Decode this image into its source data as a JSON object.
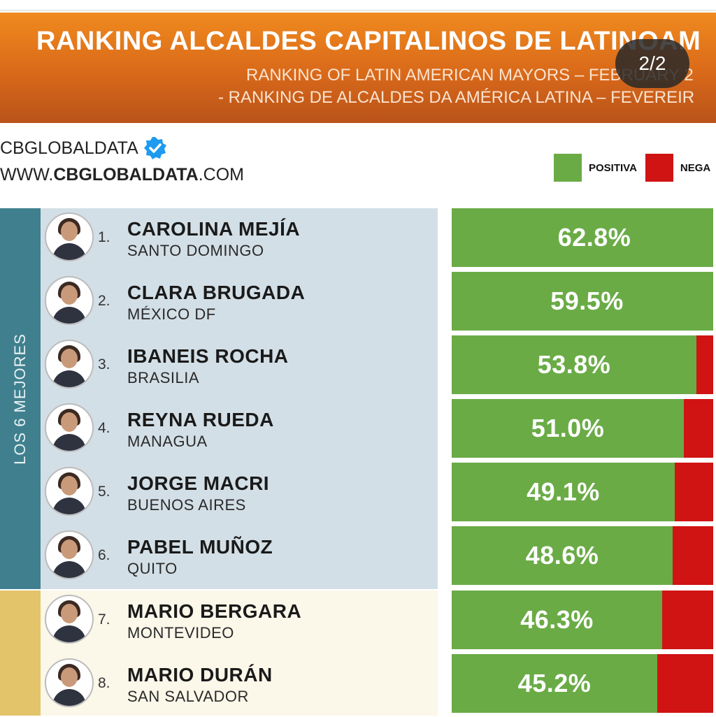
{
  "header": {
    "title": "RANKING ALCALDES CAPITALINOS DE LATINOAM",
    "subtitle_en": "RANKING OF LATIN AMERICAN MAYORS – FEBRUARY 2",
    "subtitle_pt": "- RANKING DE ALCALDES DA AMÉRICA LATINA – FEVEREIR",
    "page_indicator": "2/2"
  },
  "brand": {
    "handle": "CBGLOBALDATA",
    "verified_icon": "verified-badge-icon",
    "site_prefix": "WWW.",
    "site_bold": "CBGLOBALDATA",
    "site_suffix": ".COM"
  },
  "legend": {
    "positive": "POSITIVA",
    "negative": "NEGA"
  },
  "colors": {
    "positive": "#6aab46",
    "negative": "#d01313",
    "group_top": "#40808e",
    "group_bottom": "#e3c46b",
    "banner": "#e0761c"
  },
  "sidebar": {
    "group_label": "LOS 6 MEJORES"
  },
  "chart_data": {
    "type": "bar",
    "title": "RANKING ALCALDES CAPITALINOS DE LATINOAM",
    "legend": [
      "POSITIVA",
      "NEGA"
    ],
    "categories": [
      "CAROLINA MEJÍA",
      "CLARA BRUGADA",
      "IBANEIS ROCHA",
      "REYNA RUEDA",
      "JORGE MACRI",
      "PABEL MUÑOZ",
      "MARIO BERGARA",
      "MARIO DURÁN"
    ],
    "series": [
      {
        "name": "POSITIVA",
        "values": [
          62.8,
          59.5,
          53.8,
          51.0,
          49.1,
          48.6,
          46.3,
          45.2
        ]
      }
    ],
    "xlim": [
      0,
      100
    ],
    "rows": [
      {
        "rank": "1.",
        "name": "CAROLINA MEJÍA",
        "city": "SANTO DOMINGO",
        "positive": 62.8,
        "label": "62.8%",
        "group": "top"
      },
      {
        "rank": "2.",
        "name": "CLARA BRUGADA",
        "city": "MÉXICO DF",
        "positive": 59.5,
        "label": "59.5%",
        "group": "top"
      },
      {
        "rank": "3.",
        "name": "IBANEIS ROCHA",
        "city": "BRASILIA",
        "positive": 53.8,
        "label": "53.8%",
        "group": "top"
      },
      {
        "rank": "4.",
        "name": "REYNA RUEDA",
        "city": "MANAGUA",
        "positive": 51.0,
        "label": "51.0%",
        "group": "top"
      },
      {
        "rank": "5.",
        "name": "JORGE MACRI",
        "city": "BUENOS AIRES",
        "positive": 49.1,
        "label": "49.1%",
        "group": "top"
      },
      {
        "rank": "6.",
        "name": "PABEL MUÑOZ",
        "city": "QUITO",
        "positive": 48.6,
        "label": "48.6%",
        "group": "top"
      },
      {
        "rank": "7.",
        "name": "MARIO BERGARA",
        "city": "MONTEVIDEO",
        "positive": 46.3,
        "label": "46.3%",
        "group": "bottom"
      },
      {
        "rank": "8.",
        "name": "MARIO DURÁN",
        "city": "SAN SALVADOR",
        "positive": 45.2,
        "label": "45.2%",
        "group": "bottom"
      }
    ]
  }
}
